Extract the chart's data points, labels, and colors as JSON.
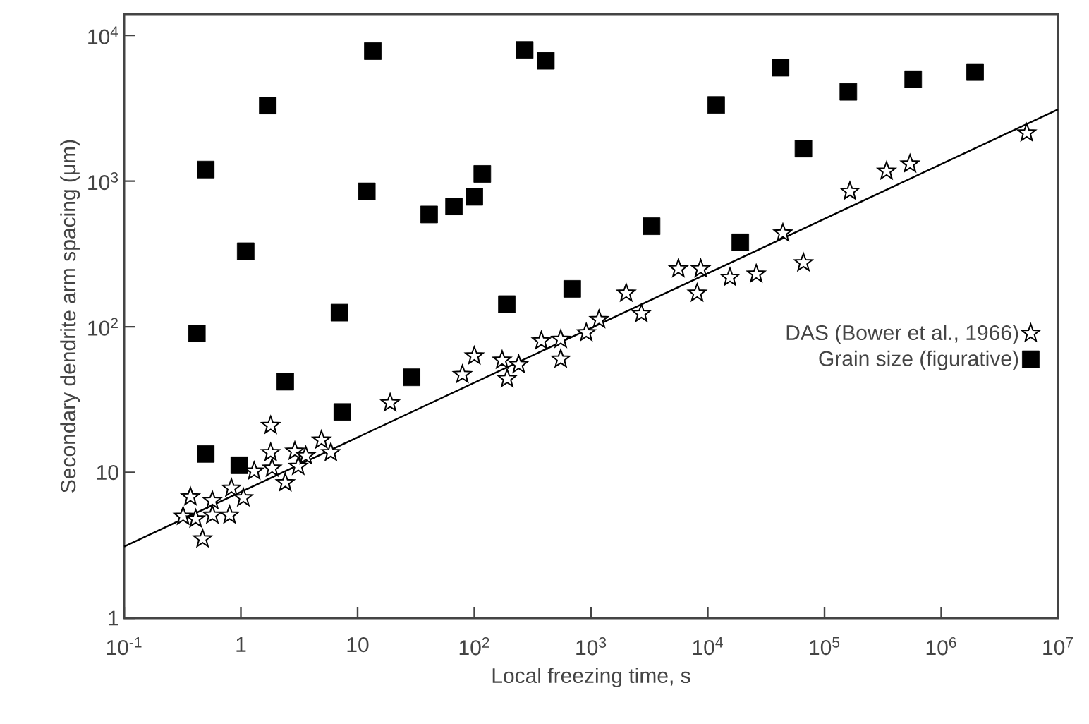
{
  "chart_data": {
    "type": "scatter",
    "xlabel": "Local freezing time, s",
    "ylabel": "Secondary dendrite arm spacing (μm)",
    "log": "xy",
    "grid": false,
    "legend": "right",
    "xlim": [
      0.1,
      10000000
    ],
    "ylim": [
      1,
      14000
    ],
    "xticks": [
      {
        "value": 0.1,
        "label": "10$^{-1}$"
      },
      1,
      10,
      {
        "value": 100,
        "label": "10$^{2}$"
      },
      {
        "value": 1000,
        "label": "10$^{3}$"
      },
      {
        "value": 10000,
        "label": "10$^{4}$"
      },
      {
        "value": 100000,
        "label": "10$^{5}$"
      },
      {
        "value": 1000000,
        "label": "10$^{6}$"
      },
      {
        "value": 10000000,
        "label": "10$^{7}$"
      }
    ],
    "yticks": [
      1,
      10,
      {
        "value": 100,
        "label": "10$^{2}$"
      },
      {
        "value": 1000,
        "label": "10$^{3}$"
      },
      {
        "value": 10000,
        "label": "10$^{4}$"
      }
    ],
    "series": [
      {
        "name": "DAS (Bower et al., 1966)",
        "marker": "star",
        "color": "#000000",
        "x": [
          0.32,
          0.37,
          0.41,
          0.47,
          0.57,
          0.57,
          0.8,
          0.83,
          1.05,
          1.3,
          1.8,
          1.8,
          1.85,
          2.4,
          2.9,
          3.1,
          3.6,
          4.9,
          5.9,
          19,
          79,
          100,
          173,
          191,
          240,
          375,
          550,
          550,
          910,
          1170,
          2000,
          2700,
          5600,
          8100,
          8700,
          15500,
          26000,
          44000,
          66000,
          165000,
          340000,
          540000,
          5400000
        ],
        "values": [
          5.0,
          6.8,
          4.8,
          3.5,
          6.4,
          5.1,
          5.1,
          7.8,
          6.7,
          10.2,
          21,
          13.7,
          10.7,
          8.5,
          14,
          11,
          13,
          16.7,
          13.7,
          30,
          47,
          63,
          59,
          44,
          55,
          80,
          60,
          82,
          91,
          112,
          170,
          123,
          250,
          170,
          250,
          218,
          230,
          440,
          275,
          850,
          1170,
          1310,
          2140
        ]
      },
      {
        "name": "Grain size (figurative)",
        "marker": "square",
        "color": "#000000",
        "x": [
          0.5,
          13.5,
          1.7,
          1.1,
          0.42,
          7,
          12,
          41,
          67,
          100,
          117,
          190,
          270,
          410,
          11800,
          42000,
          66000,
          160000,
          575000,
          1950000,
          3300,
          19000,
          690,
          0.5,
          0.97,
          2.4,
          7.4,
          29
        ],
        "values": [
          1200,
          7800,
          3300,
          330,
          90,
          125,
          850,
          590,
          670,
          780,
          1120,
          143,
          7950,
          6700,
          3330,
          6000,
          1670,
          4100,
          5000,
          5600,
          490,
          380,
          182,
          13.4,
          11.2,
          42,
          26,
          45
        ]
      },
      {
        "type": "line",
        "marker": "none",
        "line_style": "solid",
        "color": "#000000",
        "x": [
          0.1,
          10000000
        ],
        "values": [
          3.1,
          3100
        ]
      }
    ]
  }
}
